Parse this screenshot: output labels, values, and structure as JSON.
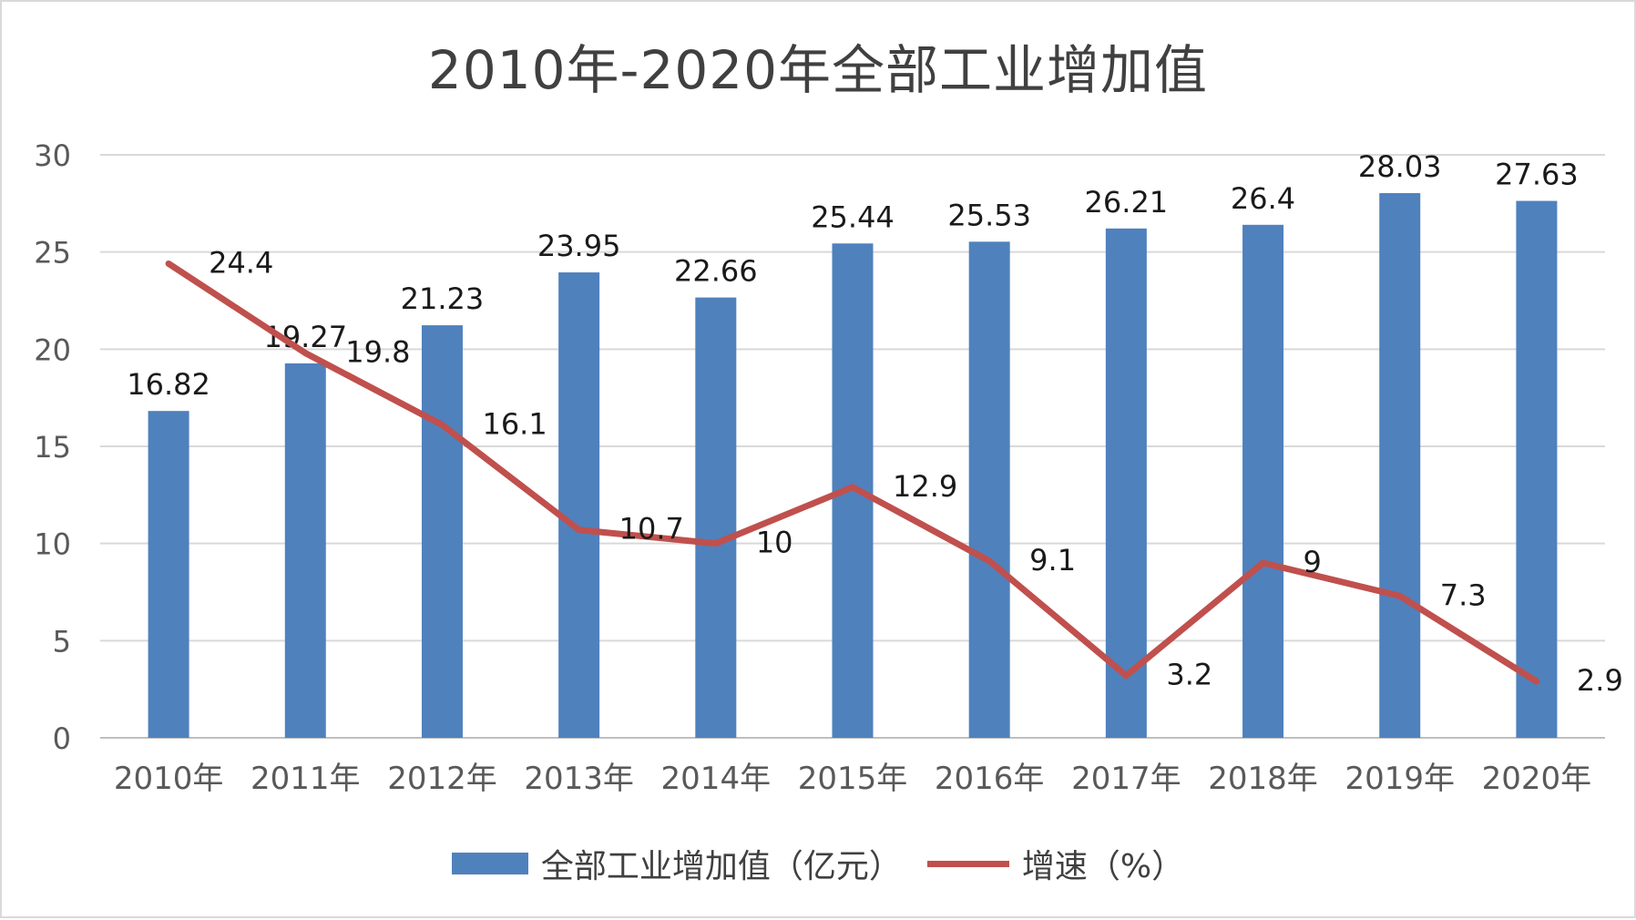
{
  "chart_data": {
    "type": "bar",
    "title": "2010年-2020年全部工业增加值",
    "categories": [
      "2010年",
      "2011年",
      "2012年",
      "2013年",
      "2014年",
      "2015年",
      "2016年",
      "2017年",
      "2018年",
      "2019年",
      "2020年"
    ],
    "ylim": [
      0,
      30
    ],
    "yticks": [
      "0",
      "5",
      "10",
      "15",
      "20",
      "25",
      "30"
    ],
    "grid": true,
    "legend_position": "bottom",
    "series": [
      {
        "name": "全部工业增加值（亿元）",
        "type": "bar",
        "color": "#4f81bd",
        "values": [
          16.82,
          19.27,
          21.23,
          23.95,
          22.66,
          25.44,
          25.53,
          26.21,
          26.4,
          28.03,
          27.63
        ],
        "labels": [
          "16.82",
          "19.27",
          "21.23",
          "23.95",
          "22.66",
          "25.44",
          "25.53",
          "26.21",
          "26.4",
          "28.03",
          "27.63"
        ]
      },
      {
        "name": "增速（%）",
        "type": "line",
        "color": "#c0504d",
        "values": [
          24.4,
          19.8,
          16.1,
          10.7,
          10,
          12.9,
          9.1,
          3.2,
          9,
          7.3,
          2.9
        ],
        "labels": [
          "24.4",
          "19.8",
          "16.1",
          "10.7",
          "10",
          "12.9",
          "9.1",
          "3.2",
          "9",
          "7.3",
          "2.9"
        ]
      }
    ]
  }
}
